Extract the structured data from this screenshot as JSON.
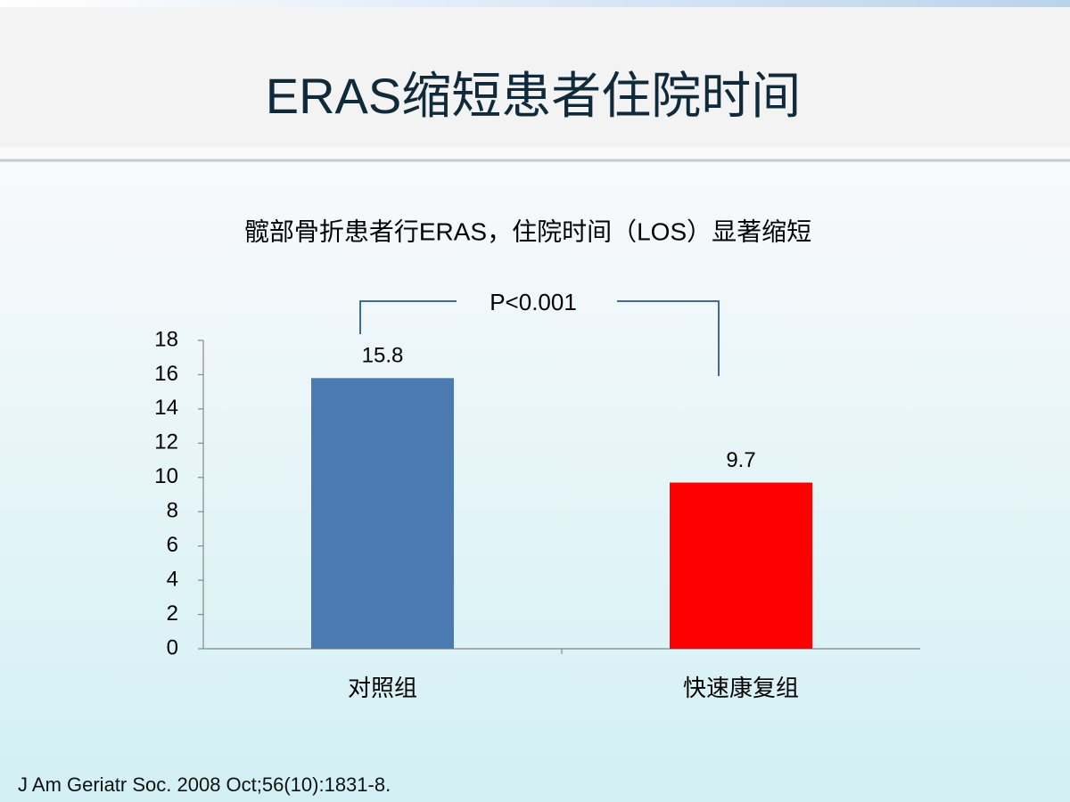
{
  "slide": {
    "title": "ERAS缩短患者住院时间",
    "citation": "J Am Geriatr Soc. 2008 Oct;56(10):1831-8."
  },
  "chart_data": {
    "type": "bar",
    "title": "髋部骨折患者行ERAS，住院时间（LOS）显著缩短",
    "annotation": "P<0.001",
    "categories": [
      "对照组",
      "快速康复组"
    ],
    "values": [
      15.8,
      9.7
    ],
    "colors": [
      "#4a7ab0",
      "#ff0000"
    ],
    "ylim": [
      0,
      18
    ],
    "yticks": [
      0,
      2,
      4,
      6,
      8,
      10,
      12,
      14,
      16,
      18
    ],
    "grid": false
  }
}
